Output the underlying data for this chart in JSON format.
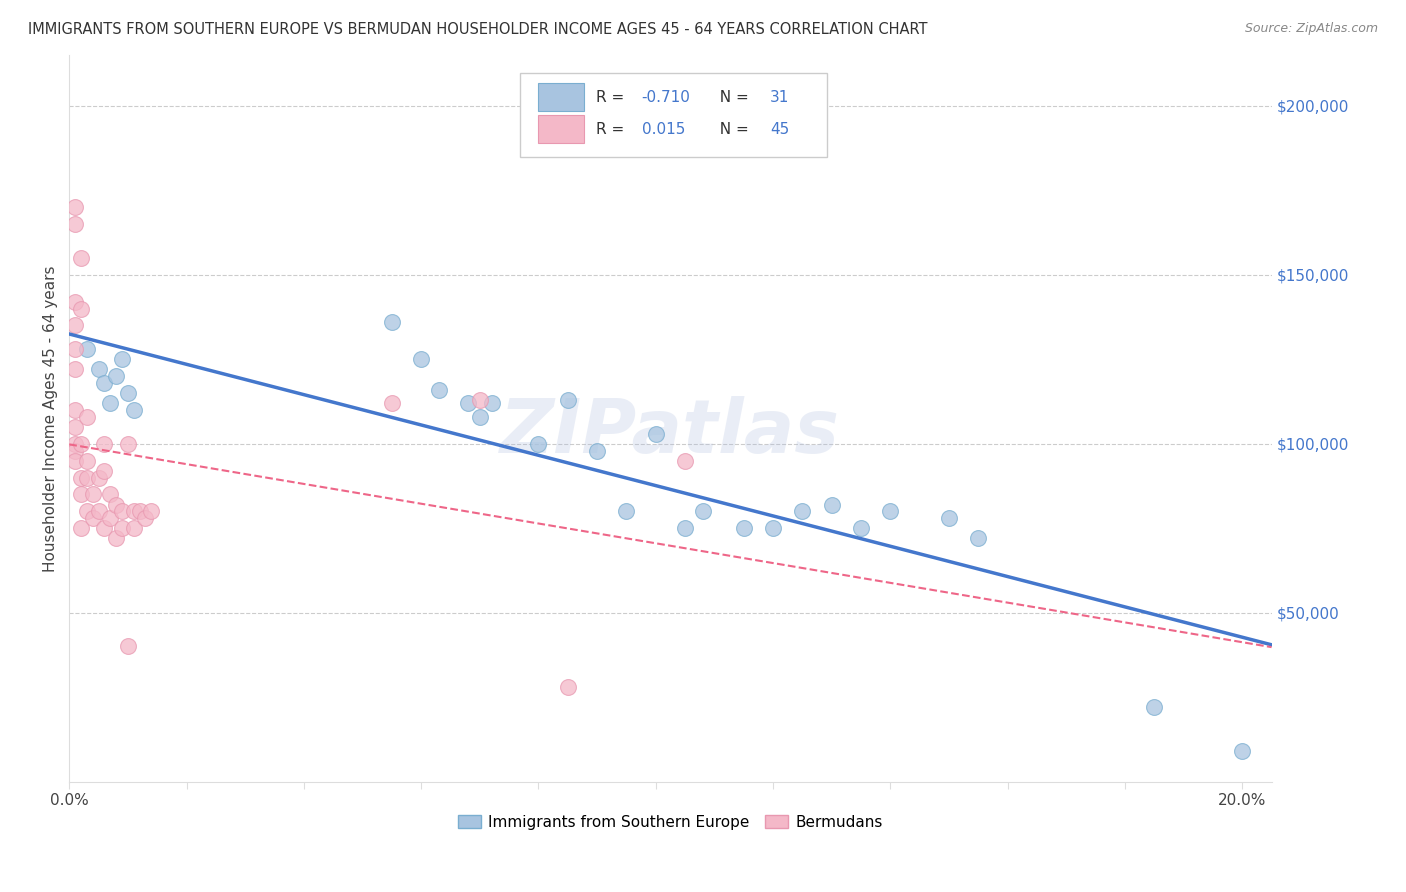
{
  "title": "IMMIGRANTS FROM SOUTHERN EUROPE VS BERMUDAN HOUSEHOLDER INCOME AGES 45 - 64 YEARS CORRELATION CHART",
  "source": "Source: ZipAtlas.com",
  "ylabel": "Householder Income Ages 45 - 64 years",
  "legend_labels": [
    "Immigrants from Southern Europe",
    "Bermudans"
  ],
  "r_blue": -0.71,
  "n_blue": 31,
  "r_pink": 0.015,
  "n_pink": 45,
  "blue_scatter_color": "#A8C4E0",
  "pink_scatter_color": "#F4B8C8",
  "blue_edge_color": "#7AAED0",
  "pink_edge_color": "#E898B0",
  "blue_line_color": "#4477CC",
  "pink_line_color": "#EE6688",
  "watermark": "ZIPatlas",
  "xlim": [
    0.0,
    0.205
  ],
  "ylim": [
    0,
    215000
  ],
  "yticks": [
    50000,
    100000,
    150000,
    200000
  ],
  "ytick_labels": [
    "$50,000",
    "$100,000",
    "$150,000",
    "$200,000"
  ],
  "xticks": [
    0.0,
    0.02,
    0.04,
    0.06,
    0.08,
    0.1,
    0.12,
    0.14,
    0.16,
    0.18,
    0.2
  ],
  "xtick_labels": [
    "0.0%",
    "",
    "",
    "",
    "",
    "",
    "",
    "",
    "",
    "",
    "20.0%"
  ],
  "blue_x": [
    0.003,
    0.005,
    0.006,
    0.007,
    0.008,
    0.009,
    0.01,
    0.011,
    0.055,
    0.06,
    0.063,
    0.068,
    0.07,
    0.072,
    0.08,
    0.085,
    0.09,
    0.095,
    0.1,
    0.105,
    0.108,
    0.115,
    0.12,
    0.125,
    0.13,
    0.135,
    0.14,
    0.15,
    0.155,
    0.185,
    0.2
  ],
  "blue_y": [
    128000,
    122000,
    118000,
    112000,
    120000,
    125000,
    115000,
    110000,
    136000,
    125000,
    116000,
    112000,
    108000,
    112000,
    100000,
    113000,
    98000,
    80000,
    103000,
    75000,
    80000,
    75000,
    75000,
    80000,
    82000,
    75000,
    80000,
    78000,
    72000,
    22000,
    9000
  ],
  "pink_x": [
    0.001,
    0.001,
    0.001,
    0.001,
    0.001,
    0.001,
    0.001,
    0.001,
    0.001,
    0.001,
    0.001,
    0.002,
    0.002,
    0.002,
    0.002,
    0.002,
    0.002,
    0.003,
    0.003,
    0.003,
    0.003,
    0.004,
    0.004,
    0.005,
    0.005,
    0.006,
    0.006,
    0.006,
    0.007,
    0.007,
    0.008,
    0.008,
    0.009,
    0.009,
    0.01,
    0.01,
    0.011,
    0.011,
    0.012,
    0.013,
    0.014,
    0.055,
    0.07,
    0.085,
    0.105
  ],
  "pink_y": [
    170000,
    165000,
    142000,
    135000,
    128000,
    122000,
    110000,
    105000,
    100000,
    98000,
    95000,
    155000,
    140000,
    100000,
    90000,
    85000,
    75000,
    108000,
    95000,
    90000,
    80000,
    85000,
    78000,
    90000,
    80000,
    100000,
    92000,
    75000,
    85000,
    78000,
    82000,
    72000,
    80000,
    75000,
    100000,
    40000,
    80000,
    75000,
    80000,
    78000,
    80000,
    112000,
    113000,
    28000,
    95000
  ]
}
